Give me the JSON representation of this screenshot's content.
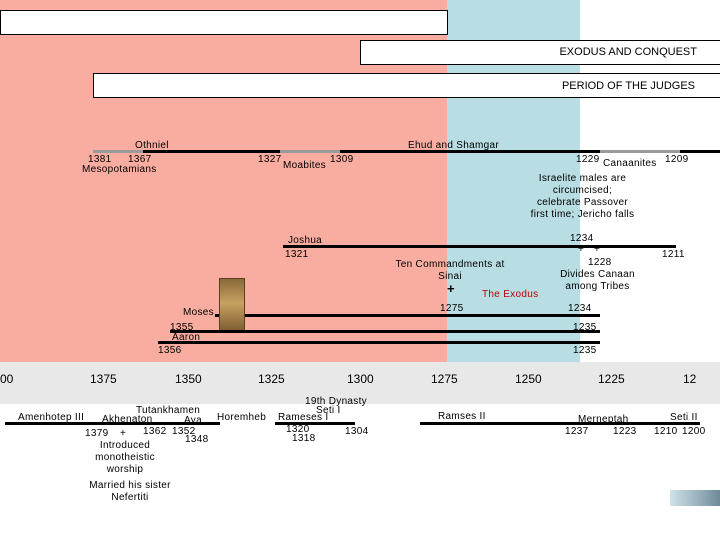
{
  "colors": {
    "salmon": "#f9ada0",
    "teal": "#b8dde2",
    "gray_bar": "#9a9a9a",
    "timebar": "#e8e8e8"
  },
  "headers": {
    "exodus": "EXODUS AND CONQUEST",
    "judges": "PERIOD OF THE JUDGES"
  },
  "judges": {
    "othniel": "Othniel",
    "y1381": "1381",
    "y1367": "1367",
    "mesopotamians": "Mesopotamians",
    "ehud": "Ehud and Shamgar",
    "y1327": "1327",
    "moabites": "Moabites",
    "y1309": "1309",
    "y1229": "1229",
    "canaanites": "Canaanites",
    "y1209": "1209"
  },
  "conquest": {
    "israelite_text": "Israelite males are circumcised; celebrate Passover first time; Jericho falls",
    "y1234a": "1234",
    "y1228": "1228",
    "divides_text": "Divides Canaan among Tribes",
    "y1211": "1211",
    "joshua": "Joshua",
    "y1321": "1321",
    "commandments": "Ten Commandments at Sinai",
    "exodus": "The Exodus",
    "y1275": "1275",
    "y1234b": "1234",
    "moses": "Moses",
    "y1355": "1355",
    "aaron": "Aaron",
    "y1235a": "1235",
    "y1356": "1356",
    "y1235b": "1235",
    "plus": "+"
  },
  "timeline": {
    "t1400": "00",
    "t1375": "1375",
    "t1350": "1350",
    "t1325": "1325",
    "t1300": "1300",
    "t1275": "1275",
    "t1250": "1250",
    "t1225": "1225",
    "t1200": "12"
  },
  "pharaohs": {
    "amenhotep": "Amenhotep III",
    "akhenaton": "Akhenaton",
    "y1379": "1379",
    "plus": "+",
    "y1362": "1362",
    "introduced": "Introduced monotheistic worship",
    "married": "Married his sister Nefertiti",
    "tutankhamen": "Tutankhamen",
    "aya": "Aya",
    "y1352": "1352",
    "y1348": "1348",
    "horemheb": "Horemheb",
    "dynasty": "19th Dynasty",
    "seti1": "Seti I",
    "rameses1": "Rameses I",
    "y1320": "1320",
    "y1318": "1318",
    "y1304": "1304",
    "rameses2": "Ramses II",
    "merneptah": "Merneptah",
    "y1237": "1237",
    "y1223": "1223",
    "seti2": "Seti II",
    "y1210": "1210",
    "y1200": "1200"
  }
}
